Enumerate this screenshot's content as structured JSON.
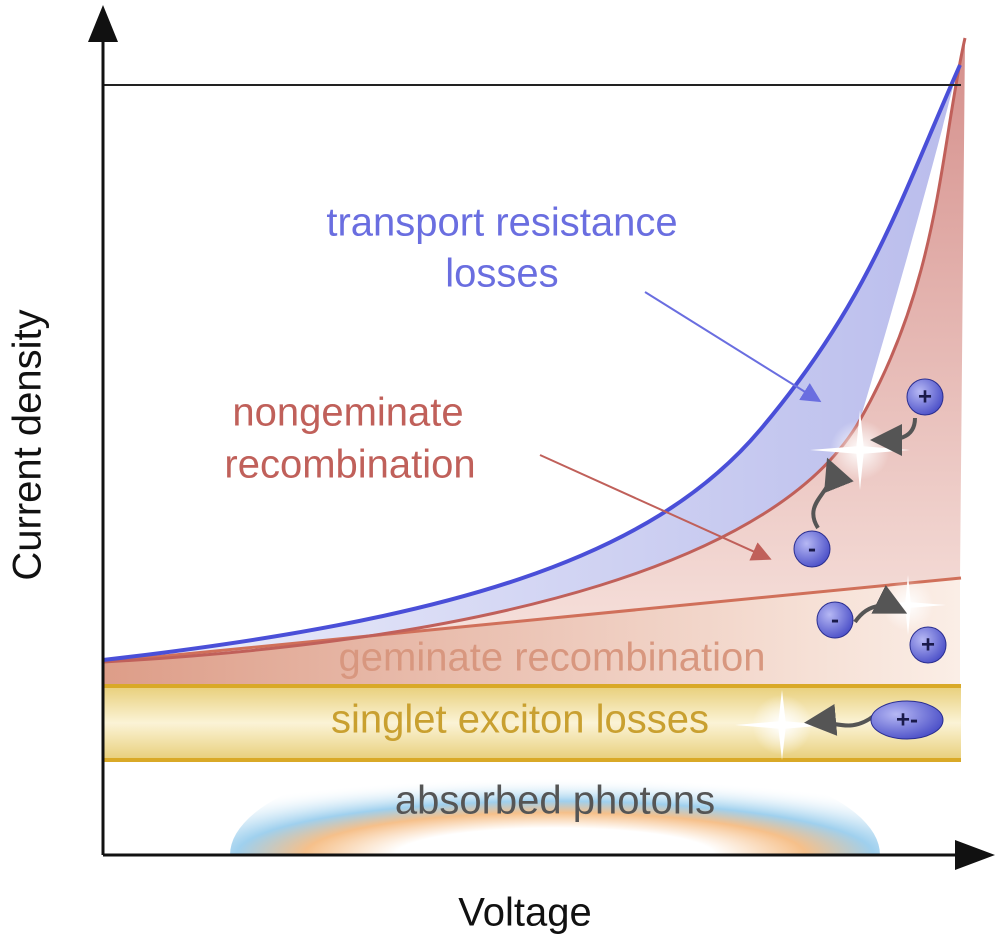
{
  "axes": {
    "y_label": "Current density",
    "x_label": "Voltage"
  },
  "regions": {
    "transport": {
      "lines": [
        "transport resistance",
        "losses"
      ]
    },
    "nongeminate": {
      "lines": [
        "nongeminate",
        "recombination"
      ]
    },
    "geminate": {
      "label": "geminate recombination"
    },
    "singlet": {
      "label": "singlet exciton losses"
    },
    "photons": {
      "label": "absorbed photons"
    }
  },
  "particles": [
    "+",
    "-",
    "-",
    "+",
    "+-"
  ]
}
